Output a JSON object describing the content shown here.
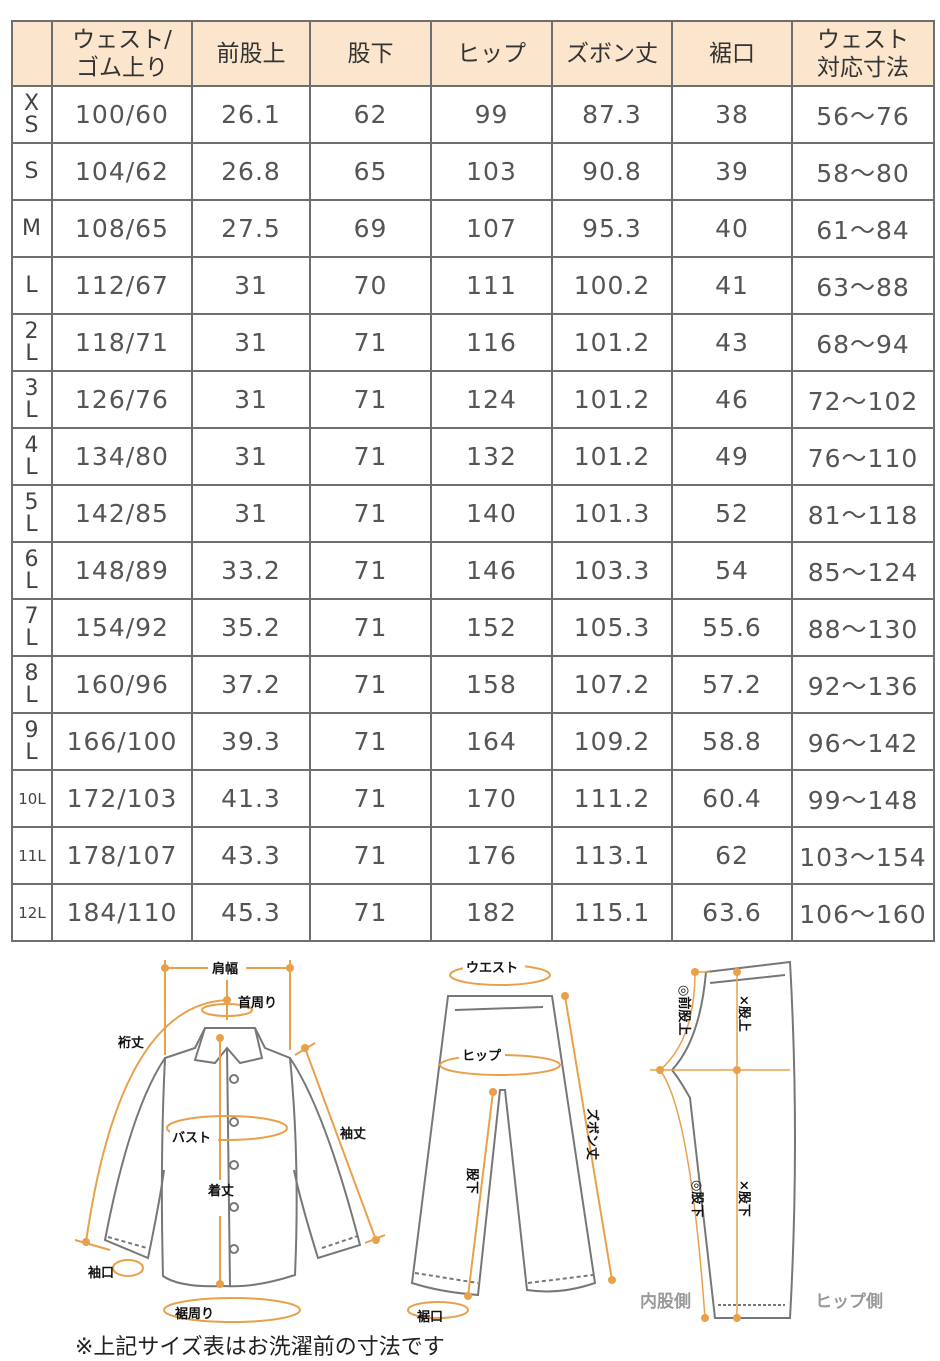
{
  "table": {
    "headers": [
      "",
      "ウェスト/\nゴム上り",
      "前股上",
      "股下",
      "ヒップ",
      "ズボン丈",
      "裾口",
      "ウェスト\n対応寸法"
    ],
    "rows": [
      [
        "XS",
        "100/60",
        "26.1",
        "62",
        "99",
        "87.3",
        "38",
        "56〜76"
      ],
      [
        "S",
        "104/62",
        "26.8",
        "65",
        "103",
        "90.8",
        "39",
        "58〜80"
      ],
      [
        "M",
        "108/65",
        "27.5",
        "69",
        "107",
        "95.3",
        "40",
        "61〜84"
      ],
      [
        "L",
        "112/67",
        "31",
        "70",
        "111",
        "100.2",
        "41",
        "63〜88"
      ],
      [
        "2L",
        "118/71",
        "31",
        "71",
        "116",
        "101.2",
        "43",
        "68〜94"
      ],
      [
        "3L",
        "126/76",
        "31",
        "71",
        "124",
        "101.2",
        "46",
        "72〜102"
      ],
      [
        "4L",
        "134/80",
        "31",
        "71",
        "132",
        "101.2",
        "49",
        "76〜110"
      ],
      [
        "5L",
        "142/85",
        "31",
        "71",
        "140",
        "101.3",
        "52",
        "81〜118"
      ],
      [
        "6L",
        "148/89",
        "33.2",
        "71",
        "146",
        "103.3",
        "54",
        "85〜124"
      ],
      [
        "7L",
        "154/92",
        "35.2",
        "71",
        "152",
        "105.3",
        "55.6",
        "88〜130"
      ],
      [
        "8L",
        "160/96",
        "37.2",
        "71",
        "158",
        "107.2",
        "57.2",
        "92〜136"
      ],
      [
        "9L",
        "166/100",
        "39.3",
        "71",
        "164",
        "109.2",
        "58.8",
        "96〜142"
      ],
      [
        "10L",
        "172/103",
        "41.3",
        "71",
        "170",
        "111.2",
        "60.4",
        "99〜148"
      ],
      [
        "11L",
        "178/107",
        "43.3",
        "71",
        "176",
        "113.1",
        "62",
        "103〜154"
      ],
      [
        "12L",
        "184/110",
        "45.3",
        "71",
        "182",
        "115.1",
        "63.6",
        "106〜160"
      ]
    ]
  },
  "diagram": {
    "jacket": {
      "shoulder": "肩幅",
      "neck": "首周り",
      "yuki": "裄丈",
      "bust": "バスト",
      "sleeve": "袖丈",
      "length": "着丈",
      "cuff": "袖口",
      "hem": "裾周り"
    },
    "pants": {
      "waist": "ウエスト",
      "hip": "ヒップ",
      "length": "ズボン丈",
      "inseam": "股下",
      "hem": "裾口"
    },
    "side": {
      "front_rise": "◎前股上",
      "rise": "×股上",
      "inseam_o": "◎股下",
      "inseam_x": "×股下",
      "inner": "内股側",
      "hip_side": "ヒップ側"
    }
  },
  "colors": {
    "header_bg": "#fbe5cc",
    "measure_line": "#e9a04a",
    "outline": "#777777"
  },
  "note": "※上記サイズ表はお洗濯前の寸法です"
}
